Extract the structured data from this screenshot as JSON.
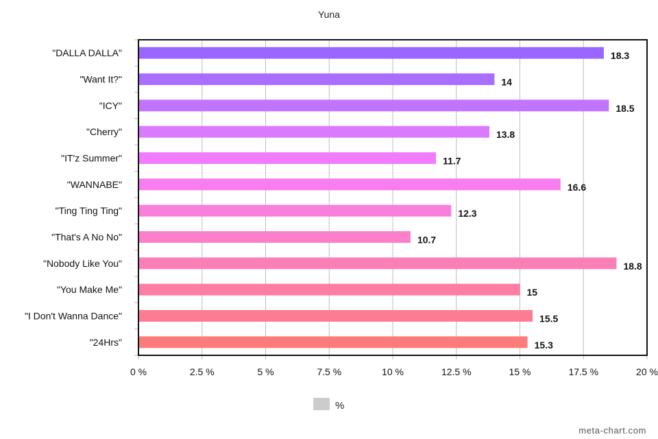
{
  "chart_data": {
    "type": "bar",
    "orientation": "horizontal",
    "title": "Yuna",
    "categories": [
      "\"DALLA DALLA\"",
      "\"Want It?\"",
      "\"ICY\"",
      "\"Cherry\"",
      "\"IT'z Summer\"",
      "\"WANNABE\"",
      "\"Ting Ting Ting\"",
      "\"That's A No No\"",
      "\"Nobody Like You\"",
      "\"You Make Me\"",
      "\"I Don't Wanna Dance\"",
      "\"24Hrs\""
    ],
    "series": [
      {
        "name": "%",
        "values": [
          18.3,
          14,
          18.5,
          13.8,
          11.7,
          16.6,
          12.3,
          10.7,
          18.8,
          15,
          15.5,
          15.3
        ],
        "value_labels": [
          "18.3",
          "14",
          "18.5",
          "13.8",
          "11.7",
          "16.6",
          "12.3",
          "10.7",
          "18.8",
          "15",
          "15.5",
          "15.3"
        ]
      }
    ],
    "bar_colors": [
      "#9966ff",
      "#aa6eff",
      "#c274ff",
      "#d97bff",
      "#f07dff",
      "#f77df0",
      "#fa7edb",
      "#fb7fca",
      "#fb7fb7",
      "#fc7fa3",
      "#fd7c92",
      "#fe7b7b"
    ],
    "x_ticks": [
      0,
      2.5,
      5,
      7.5,
      10,
      12.5,
      15,
      17.5,
      20
    ],
    "x_tick_labels": [
      "0 %",
      "2.5 %",
      "5 %",
      "7.5 %",
      "10 %",
      "12.5 %",
      "15 %",
      "17.5 %",
      "20 %"
    ],
    "xlim": [
      0,
      20
    ],
    "grid": true,
    "legend": {
      "position": "bottom",
      "label": "%",
      "swatch_color": "#cccccc"
    },
    "xlabel": "",
    "ylabel": ""
  },
  "watermark": "meta-chart.com"
}
